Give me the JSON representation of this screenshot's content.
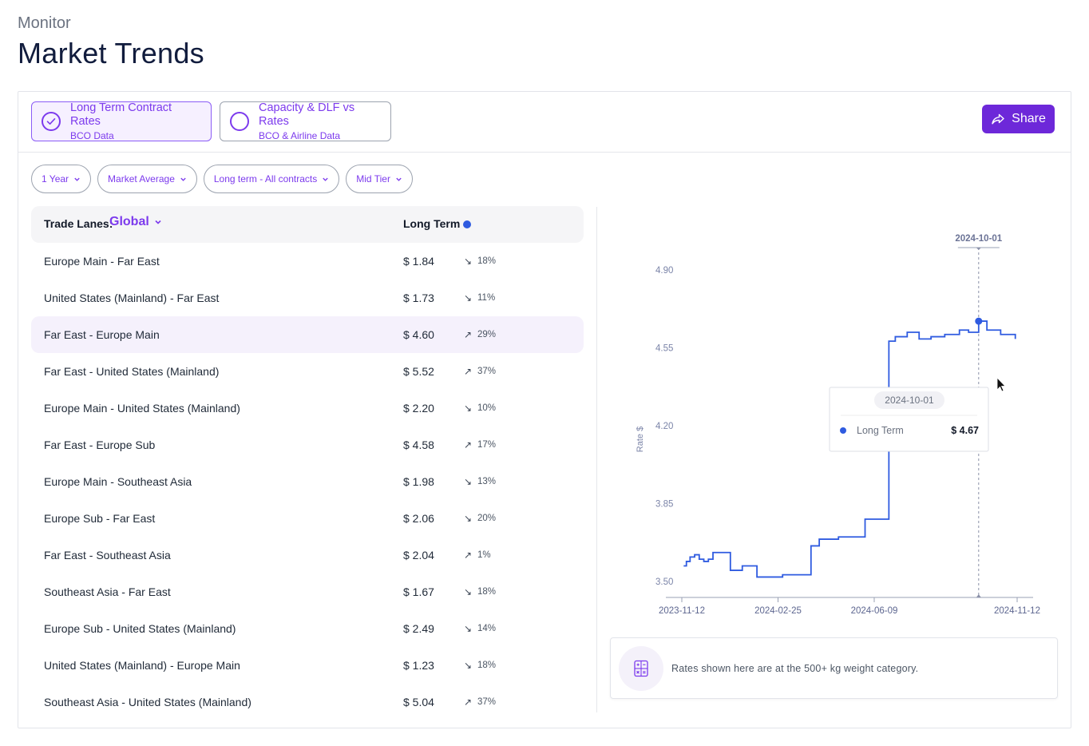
{
  "header": {
    "eyebrow": "Monitor",
    "title": "Market Trends"
  },
  "tabs": [
    {
      "label": "Long Term Contract Rates",
      "sub": "BCO Data",
      "active": true
    },
    {
      "label": "Capacity & DLF vs Rates",
      "sub": "BCO & Airline Data",
      "active": false
    }
  ],
  "share_label": "Share",
  "filters": [
    "1 Year",
    "Market Average",
    "Long term - All contracts",
    "Mid Tier"
  ],
  "table": {
    "lanes_label": "Trade Lanes:",
    "region": "Global",
    "column_label": "Long Term",
    "rows": [
      {
        "lane": "Europe Main - Far East",
        "value": "$ 1.84",
        "dir": "down",
        "pct": "18%"
      },
      {
        "lane": "United States (Mainland) - Far East",
        "value": "$ 1.73",
        "dir": "down",
        "pct": "11%"
      },
      {
        "lane": "Far East - Europe Main",
        "value": "$ 4.60",
        "dir": "up",
        "pct": "29%",
        "highlighted": true
      },
      {
        "lane": "Far East - United States (Mainland)",
        "value": "$ 5.52",
        "dir": "up",
        "pct": "37%"
      },
      {
        "lane": "Europe Main - United States (Mainland)",
        "value": "$ 2.20",
        "dir": "down",
        "pct": "10%"
      },
      {
        "lane": "Far East - Europe Sub",
        "value": "$ 4.58",
        "dir": "up",
        "pct": "17%"
      },
      {
        "lane": "Europe Main - Southeast Asia",
        "value": "$ 1.98",
        "dir": "down",
        "pct": "13%"
      },
      {
        "lane": "Europe Sub - Far East",
        "value": "$ 2.06",
        "dir": "down",
        "pct": "20%"
      },
      {
        "lane": "Far East - Southeast Asia",
        "value": "$ 2.04",
        "dir": "up",
        "pct": "1%"
      },
      {
        "lane": "Southeast Asia - Far East",
        "value": "$ 1.67",
        "dir": "down",
        "pct": "18%"
      },
      {
        "lane": "Europe Sub - United States (Mainland)",
        "value": "$ 2.49",
        "dir": "down",
        "pct": "14%"
      },
      {
        "lane": "United States (Mainland) - Europe Main",
        "value": "$ 1.23",
        "dir": "down",
        "pct": "18%"
      },
      {
        "lane": "Southeast Asia - United States (Mainland)",
        "value": "$ 5.04",
        "dir": "up",
        "pct": "37%"
      }
    ]
  },
  "chart_data": {
    "type": "line",
    "step": true,
    "ylabel": "Rate $",
    "ylim": [
      3.5,
      4.9
    ],
    "yticks": [
      "4.90",
      "4.55",
      "4.20",
      "3.85",
      "3.50"
    ],
    "xticks": [
      "2023-11-12",
      "2024-02-25",
      "2024-06-09",
      "2024-11-12"
    ],
    "series": [
      {
        "name": "Long Term",
        "color": "#2f5be0",
        "points": [
          [
            "2023-11-14",
            3.57
          ],
          [
            "2023-11-17",
            3.59
          ],
          [
            "2023-11-21",
            3.61
          ],
          [
            "2023-11-26",
            3.62
          ],
          [
            "2023-12-01",
            3.6
          ],
          [
            "2023-12-06",
            3.59
          ],
          [
            "2023-12-11",
            3.6
          ],
          [
            "2023-12-16",
            3.63
          ],
          [
            "2023-12-25",
            3.63
          ],
          [
            "2024-01-04",
            3.55
          ],
          [
            "2024-01-17",
            3.57
          ],
          [
            "2024-02-02",
            3.52
          ],
          [
            "2024-03-01",
            3.53
          ],
          [
            "2024-04-01",
            3.66
          ],
          [
            "2024-04-10",
            3.69
          ],
          [
            "2024-04-20",
            3.69
          ],
          [
            "2024-05-01",
            3.7
          ],
          [
            "2024-05-15",
            3.7
          ],
          [
            "2024-05-30",
            3.78
          ],
          [
            "2024-06-15",
            3.78
          ],
          [
            "2024-06-25",
            4.58
          ],
          [
            "2024-07-02",
            4.6
          ],
          [
            "2024-07-15",
            4.62
          ],
          [
            "2024-07-28",
            4.59
          ],
          [
            "2024-08-10",
            4.6
          ],
          [
            "2024-08-25",
            4.61
          ],
          [
            "2024-09-10",
            4.63
          ],
          [
            "2024-09-20",
            4.62
          ],
          [
            "2024-10-01",
            4.67
          ],
          [
            "2024-10-10",
            4.63
          ],
          [
            "2024-10-25",
            4.61
          ],
          [
            "2024-11-10",
            4.59
          ]
        ]
      }
    ],
    "crosshair": "2024-10-01",
    "tooltip": {
      "date": "2024-10-01",
      "series": "Long Term",
      "value": "$ 4.67"
    }
  },
  "note": {
    "text": "Rates shown here are at the 500+ kg weight category.",
    "icon": "calculator-icon"
  }
}
